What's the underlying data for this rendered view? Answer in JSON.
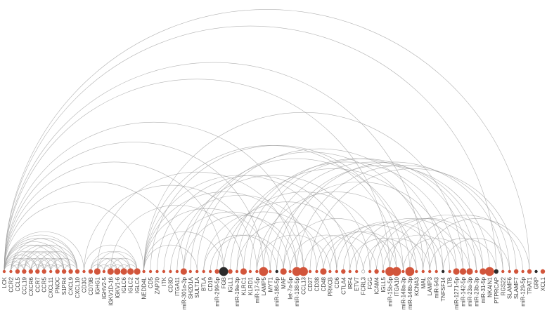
{
  "diagram": {
    "type": "arc-diagram",
    "colors": {
      "node": "#d2553b",
      "node_dark": "#2b2b2b",
      "arc": "#9a9a9a",
      "label": "#444444"
    },
    "nodes": [
      {
        "label": "LCK",
        "size": 1
      },
      {
        "label": "CCR2",
        "size": 1
      },
      {
        "label": "CCL5",
        "size": 2
      },
      {
        "label": "CCL19",
        "size": 2
      },
      {
        "label": "CXCR6",
        "size": 2
      },
      {
        "label": "CCR7",
        "size": 2
      },
      {
        "label": "CCR5",
        "size": 2
      },
      {
        "label": "CXCL11",
        "size": 1
      },
      {
        "label": "PNOC",
        "size": 2
      },
      {
        "label": "S1PR4",
        "size": 2
      },
      {
        "label": "CXCL9",
        "size": 2
      },
      {
        "label": "CXCL10",
        "size": 2
      },
      {
        "label": "CD3G",
        "size": 1
      },
      {
        "label": "CD79B",
        "size": 2
      },
      {
        "label": "IGHG1",
        "size": 3
      },
      {
        "label": "IGHV2-5",
        "size": 1
      },
      {
        "label": "IGKV1D-16",
        "size": 3
      },
      {
        "label": "IGKV1-6",
        "size": 3
      },
      {
        "label": "IGLC6",
        "size": 3
      },
      {
        "label": "IGLC2",
        "size": 3
      },
      {
        "label": "IGLC4",
        "size": 3
      },
      {
        "label": "NEDD4L",
        "size": 1
      },
      {
        "label": "CD5",
        "size": 1
      },
      {
        "label": "ZAP70",
        "size": 1
      },
      {
        "label": "ITK",
        "size": 1
      },
      {
        "label": "CD3D",
        "size": 1
      },
      {
        "label": "ITGA11",
        "size": 1
      },
      {
        "label": "miR-301a-3p",
        "size": 3
      },
      {
        "label": "SH2D1A",
        "size": 1
      },
      {
        "label": "SULT1A",
        "size": 1
      },
      {
        "label": "BTLA",
        "size": 1
      },
      {
        "label": "CD19",
        "size": 1
      },
      {
        "label": "miR-299-5p",
        "size": 2
      },
      {
        "label": "FGB",
        "size": 4,
        "dark": true
      },
      {
        "label": "IGLL1",
        "size": 2
      },
      {
        "label": "miR-19a-3p",
        "size": 1
      },
      {
        "label": "KLRC1",
        "size": 3
      },
      {
        "label": "KLRD1",
        "size": 1
      },
      {
        "label": "miR-17-5p",
        "size": 1
      },
      {
        "label": "LAMP5",
        "size": 4
      },
      {
        "label": "MYT1",
        "size": 1
      },
      {
        "label": "miR-186-5p",
        "size": 1,
        "dark": true
      },
      {
        "label": "MAF",
        "size": 3
      },
      {
        "label": "let-7a-5p",
        "size": 1
      },
      {
        "label": "miR-138-5p",
        "size": 4
      },
      {
        "label": "CCL13",
        "size": 4
      },
      {
        "label": "CD27",
        "size": 1
      },
      {
        "label": "CD38",
        "size": 1
      },
      {
        "label": "CD48",
        "size": 3
      },
      {
        "label": "PRKCB",
        "size": 1
      },
      {
        "label": "CD6",
        "size": 1
      },
      {
        "label": "CTLA4",
        "size": 2
      },
      {
        "label": "IRF4",
        "size": 1
      },
      {
        "label": "ETV7",
        "size": 1
      },
      {
        "label": "FCRL3",
        "size": 1,
        "outline": true
      },
      {
        "label": "FGG",
        "size": 1
      },
      {
        "label": "ICAM4",
        "size": 2
      },
      {
        "label": "IGLL5",
        "size": 1
      },
      {
        "label": "miR-15b-5p",
        "size": 4
      },
      {
        "label": "ITGA10",
        "size": 4
      },
      {
        "label": "miR-148a-3p",
        "size": 1
      },
      {
        "label": "miR-148b-3p",
        "size": 4
      },
      {
        "label": "KCNA3",
        "size": 1
      },
      {
        "label": "MAL",
        "size": 1
      },
      {
        "label": "LAMP3",
        "size": 1
      },
      {
        "label": "miR-543",
        "size": 1
      },
      {
        "label": "TNFSF14",
        "size": 1,
        "dark": true
      },
      {
        "label": "LTB",
        "size": 1
      },
      {
        "label": "miR-1271-5p",
        "size": 3
      },
      {
        "label": "miR-142-5p",
        "size": 3
      },
      {
        "label": "miR-23a-3p",
        "size": 3
      },
      {
        "label": "miR-23b-3p",
        "size": 1
      },
      {
        "label": "miR-31-5p",
        "size": 3
      },
      {
        "label": "NKAIN1",
        "size": 4
      },
      {
        "label": "PTPRCAP",
        "size": 2,
        "dark": true
      },
      {
        "label": "RGS22",
        "size": 1
      },
      {
        "label": "SLAMF6",
        "size": 1
      },
      {
        "label": "SLAMF7",
        "size": 2
      },
      {
        "label": "miR-129-5p",
        "size": 1
      },
      {
        "label": "TRAT1",
        "size": 2
      },
      {
        "label": "GRP",
        "size": 1,
        "dark": true
      },
      {
        "label": "XCL1",
        "size": 2
      }
    ],
    "edges": [
      [
        0,
        79
      ],
      [
        0,
        74
      ],
      [
        0,
        63
      ],
      [
        0,
        58
      ],
      [
        0,
        45
      ],
      [
        0,
        39
      ],
      [
        0,
        33
      ],
      [
        0,
        27
      ],
      [
        0,
        21
      ],
      [
        0,
        12
      ],
      [
        0,
        2
      ],
      [
        0,
        3
      ],
      [
        0,
        4
      ],
      [
        0,
        5
      ],
      [
        0,
        6
      ],
      [
        0,
        8
      ],
      [
        0,
        9
      ],
      [
        0,
        10
      ],
      [
        0,
        11
      ],
      [
        1,
        3
      ],
      [
        1,
        5
      ],
      [
        1,
        7
      ],
      [
        1,
        9
      ],
      [
        1,
        11
      ],
      [
        2,
        4
      ],
      [
        2,
        6
      ],
      [
        2,
        8
      ],
      [
        2,
        10
      ],
      [
        3,
        7
      ],
      [
        3,
        9
      ],
      [
        3,
        11
      ],
      [
        4,
        6
      ],
      [
        4,
        8
      ],
      [
        4,
        10
      ],
      [
        5,
        7
      ],
      [
        5,
        9
      ],
      [
        5,
        11
      ],
      [
        6,
        8
      ],
      [
        6,
        10
      ],
      [
        7,
        9
      ],
      [
        7,
        11
      ],
      [
        8,
        10
      ],
      [
        9,
        11
      ],
      [
        12,
        20
      ],
      [
        13,
        17
      ],
      [
        13,
        19
      ],
      [
        14,
        18
      ],
      [
        14,
        20
      ],
      [
        15,
        19
      ],
      [
        16,
        20
      ],
      [
        13,
        15
      ],
      [
        14,
        16
      ],
      [
        15,
        17
      ],
      [
        16,
        18
      ],
      [
        17,
        19
      ],
      [
        18,
        20
      ],
      [
        12,
        38
      ],
      [
        14,
        44
      ],
      [
        16,
        36
      ],
      [
        21,
        69
      ],
      [
        21,
        59
      ],
      [
        21,
        50
      ],
      [
        21,
        45
      ],
      [
        21,
        40
      ],
      [
        21,
        33
      ],
      [
        21,
        29
      ],
      [
        22,
        60
      ],
      [
        23,
        52
      ],
      [
        24,
        47
      ],
      [
        25,
        43
      ],
      [
        26,
        55
      ],
      [
        27,
        61
      ],
      [
        28,
        64
      ],
      [
        29,
        66
      ],
      [
        30,
        48
      ],
      [
        31,
        42
      ],
      [
        32,
        53
      ],
      [
        33,
        57
      ],
      [
        34,
        65
      ],
      [
        35,
        68
      ],
      [
        36,
        70
      ],
      [
        37,
        71
      ],
      [
        38,
        62
      ],
      [
        39,
        72
      ],
      [
        40,
        67
      ],
      [
        41,
        73
      ],
      [
        42,
        75
      ],
      [
        43,
        54
      ],
      [
        44,
        76
      ],
      [
        46,
        77
      ],
      [
        47,
        59
      ],
      [
        48,
        60
      ],
      [
        49,
        63
      ],
      [
        50,
        65
      ],
      [
        51,
        66
      ],
      [
        53,
        69
      ],
      [
        55,
        71
      ],
      [
        56,
        72
      ],
      [
        58,
        75
      ],
      [
        61,
        78
      ],
      [
        63,
        79
      ],
      [
        27,
        44
      ],
      [
        30,
        41
      ],
      [
        35,
        50
      ],
      [
        38,
        49
      ],
      [
        42,
        58
      ],
      [
        45,
        56
      ],
      [
        52,
        62
      ],
      [
        54,
        64
      ],
      [
        57,
        68
      ],
      [
        60,
        70
      ],
      [
        64,
        74
      ],
      [
        66,
        76
      ]
    ]
  }
}
